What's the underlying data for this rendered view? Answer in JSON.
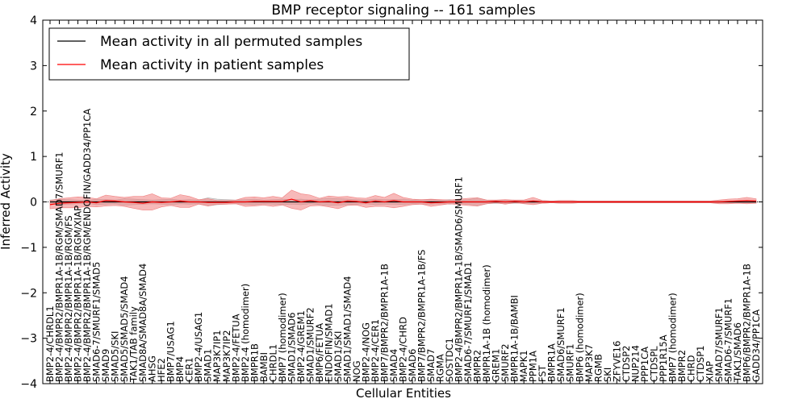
{
  "chart_data": {
    "type": "line",
    "title": "BMP receptor signaling -- 161 samples",
    "xlabel": "Cellular Entities",
    "ylabel": "Inferred Activity",
    "ylim": [
      -4,
      4
    ],
    "yticks": [
      -4,
      -3,
      -2,
      -1,
      0,
      1,
      2,
      3,
      4
    ],
    "ytick_labels": [
      "−4",
      "−3",
      "−2",
      "−1",
      "0",
      "1",
      "2",
      "3",
      "4"
    ],
    "legend": {
      "placement": "top-left",
      "entries": [
        {
          "label": "Mean activity in all permuted samples",
          "color": "#000000"
        },
        {
          "label": "Mean activity in patient samples",
          "color": "#ff0000"
        }
      ]
    },
    "colors": {
      "permuted_line": "#000000",
      "patient_line": "#ff0000",
      "patient_band": "#f08080",
      "permuted_band": "#b0b0b0",
      "baseline": "#000000"
    },
    "categories": [
      "BMP2-4/CHRDL1",
      "BMP2-4/BMPR2/BMPR1A-1B/RGM/SMAD7/SMURF1",
      "BMP2-4/BMPR2/BMPR1A-1B/RGM/FS",
      "BMP2-4/BMPR2/BMPR1A-1B/RGM/XIAP",
      "BMP2-4/BMPR2/BMPR1A-1B/RGM/ENDOFIN/GADD34/PP1CA",
      "SMAD6-7/SMURF1/SMAD5",
      "SMAD9",
      "SMAD5/SKI",
      "SMAD5/SMAD5/SMAD4",
      "TAK1/TAB family",
      "SMAD8A/SMAD8A/SMAD4",
      "AHSG",
      "HFE2",
      "BMP7/USAG1",
      "BMP4",
      "CER1",
      "BMP2-4/USAG1",
      "SMAD1",
      "MAP3K7IP1",
      "MAP3K7IP2",
      "BMP2-4/FETUA",
      "BMP2-4 (homodimer)",
      "BMPR1B",
      "BAMBI",
      "CHRDL1",
      "BMP7 (homodimer)",
      "SMAD1/SMAD6",
      "BMP2-4/GREM1",
      "SMAD1/SMURF2",
      "BMP6/FETUA",
      "ENDOFIN/SMAD1",
      "SMAD1/SKI",
      "SMAD1/SMAD1/SMAD4",
      "NOG",
      "BMP2-4/NOG",
      "BMP2-4/CER1",
      "BMP7/BMPR2/BMPR1A-1B",
      "SMAD4",
      "BMP2-4/CHRD",
      "SMAD6",
      "BMP7/BMPR2/BMPR1A-1B/FS",
      "SMAD7",
      "RGMA",
      "SOSTDC1",
      "BMP2-4/BMPR2/BMPR1A-1B/SMAD6/SMURF1",
      "SMAD6-7/SMURF1/SMAD1",
      "BMPR2",
      "BMPR1A-1B (homodimer)",
      "GREM1",
      "SMURF2",
      "BMPR1A-1B/BAMBI",
      "MAPK1",
      "PPM1A",
      "FST",
      "BMPR1A",
      "SMAD6/SMURF1",
      "SMURF1",
      "BMP6 (homodimer)",
      "MAP3K7",
      "RGMB",
      "SKI",
      "ZFYVE16",
      "CTDSP2",
      "NUP214",
      "PPP1CA",
      "CTDSPL",
      "PPP1R15A",
      "BMP7 (homodimer)",
      "BMPR2",
      "CHRD",
      "CTDSP1",
      "XIAP",
      "SMAD7/SMURF1",
      "SMAD6-7/SMURF1",
      "TAK1/SMAD6",
      "BMP6/BMPR2/BMPR1A-1B",
      "GADD34/PP1CA"
    ],
    "series": [
      {
        "name": "Mean activity in all permuted samples",
        "values": [
          0,
          0,
          0,
          0,
          0,
          0,
          0,
          0,
          0,
          0,
          0,
          0,
          0,
          0,
          0,
          0,
          0,
          0,
          0,
          0,
          0,
          0,
          0,
          0,
          0,
          0,
          0,
          0,
          0,
          0,
          0,
          0,
          0,
          0,
          0,
          0,
          0,
          0,
          0,
          0,
          0,
          0,
          0,
          0,
          0,
          0,
          0,
          0,
          0,
          0,
          0,
          0,
          0,
          0,
          0,
          0,
          0,
          0,
          0,
          0,
          0,
          0,
          0,
          0,
          0,
          0,
          0,
          0,
          0,
          0,
          0,
          0,
          0,
          0,
          0,
          0,
          0
        ],
        "spread": [
          0.04,
          0.06,
          0.05,
          0.04,
          0.03,
          0.06,
          0.05,
          0.04,
          0.07,
          0.06,
          0.05,
          0.04,
          0.05,
          0.06,
          0.04,
          0.05,
          0.04,
          0.09,
          0.06,
          0.05,
          0.04,
          0.05,
          0.06,
          0.04,
          0.05,
          0.06,
          0.05,
          0.06,
          0.04,
          0.06,
          0.08,
          0.07,
          0.06,
          0.05,
          0.04,
          0.06,
          0.05,
          0.05,
          0.06,
          0.04,
          0.05,
          0.05,
          0.04,
          0.05,
          0.04,
          0.05,
          0.09,
          0.04,
          0.03,
          0.04,
          0.03,
          0.03,
          0.03,
          0.03,
          0.02,
          0.03,
          0.03,
          0.02,
          0.02,
          0.02,
          0.02,
          0.02,
          0.02,
          0.02,
          0.02,
          0.02,
          0.02,
          0.02,
          0.02,
          0.02,
          0.02,
          0.02,
          0.02,
          0.02,
          0.02,
          0.02,
          0.02
        ]
      },
      {
        "name": "Mean activity in patient samples",
        "values": [
          -0.06,
          -0.03,
          -0.02,
          -0.01,
          0,
          -0.02,
          0.03,
          0.02,
          0,
          -0.01,
          -0.03,
          0,
          -0.01,
          0,
          0.02,
          0,
          0,
          -0.01,
          -0.01,
          -0.01,
          0,
          0,
          0.01,
          0.01,
          0.01,
          0.01,
          0.06,
          0,
          0.03,
          0,
          0.01,
          -0.02,
          0.02,
          0.01,
          -0.02,
          0.02,
          0,
          0.03,
          0,
          0,
          0,
          -0.02,
          -0.01,
          0,
          0,
          0,
          0,
          0,
          0.01,
          0,
          0.01,
          0,
          0.02,
          0,
          0,
          0,
          0,
          0,
          0,
          0,
          0,
          0,
          0,
          0,
          0,
          0,
          0,
          0,
          0,
          0,
          0,
          0,
          0,
          0.01,
          0.02,
          0.03,
          0.02
        ],
        "spread": [
          0.09,
          0.1,
          0.11,
          0.12,
          0.1,
          0.09,
          0.12,
          0.1,
          0.1,
          0.13,
          0.15,
          0.18,
          0.1,
          0.08,
          0.14,
          0.12,
          0.05,
          0.08,
          0.04,
          0.04,
          0.04,
          0.1,
          0.1,
          0.08,
          0.11,
          0.08,
          0.2,
          0.18,
          0.12,
          0.08,
          0.12,
          0.13,
          0.1,
          0.08,
          0.1,
          0.12,
          0.1,
          0.16,
          0.1,
          0.06,
          0.05,
          0.08,
          0.06,
          0.04,
          0.06,
          0.08,
          0.09,
          0.04,
          0.03,
          0.05,
          0.03,
          0.04,
          0.08,
          0.03,
          0.02,
          0.03,
          0.03,
          0.02,
          0.02,
          0.02,
          0.02,
          0.02,
          0.02,
          0.02,
          0.02,
          0.02,
          0.02,
          0.02,
          0.02,
          0.02,
          0.02,
          0.02,
          0.04,
          0.05,
          0.05,
          0.07,
          0.05
        ]
      }
    ]
  }
}
